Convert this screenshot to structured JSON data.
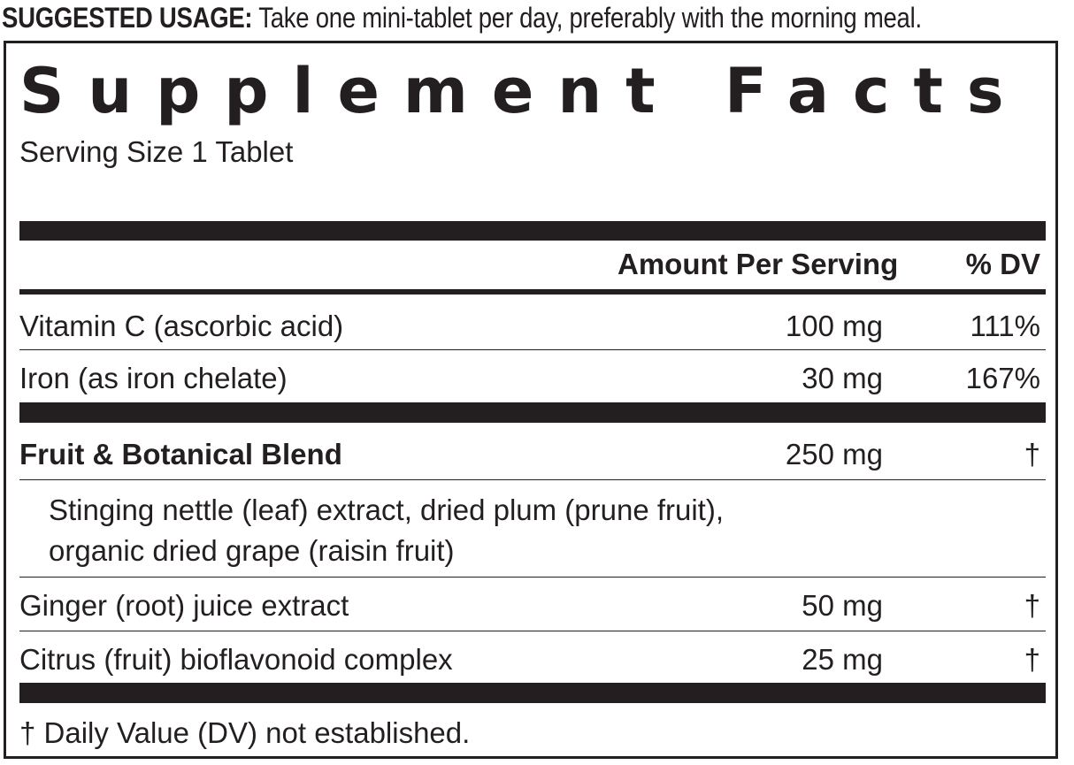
{
  "usage": {
    "label": "SUGGESTED USAGE:",
    "text": "Take one mini-tablet per day, preferably with the morning meal."
  },
  "facts": {
    "title": "Supplement Facts",
    "serving_size": "Serving Size 1 Tablet",
    "header": {
      "amount": "Amount Per Serving",
      "dv": "% DV"
    },
    "rows": [
      {
        "name": "Vitamin C (ascorbic acid)",
        "amount": "100 mg",
        "dv": "111%"
      },
      {
        "name": "Iron (as iron chelate)",
        "amount": "30 mg",
        "dv": "167%"
      },
      {
        "name": "Fruit & Botanical Blend",
        "amount": "250 mg",
        "dv": "†",
        "ingredients": [
          "Stinging nettle (leaf) extract, dried plum (prune fruit),",
          "organic dried grape (raisin fruit)"
        ]
      },
      {
        "name": "Ginger (root) juice extract",
        "amount": "50 mg",
        "dv": "†"
      },
      {
        "name": "Citrus (fruit) bioflavonoid complex",
        "amount": "25 mg",
        "dv": "†"
      }
    ],
    "footnote": "† Daily Value (DV) not established."
  }
}
